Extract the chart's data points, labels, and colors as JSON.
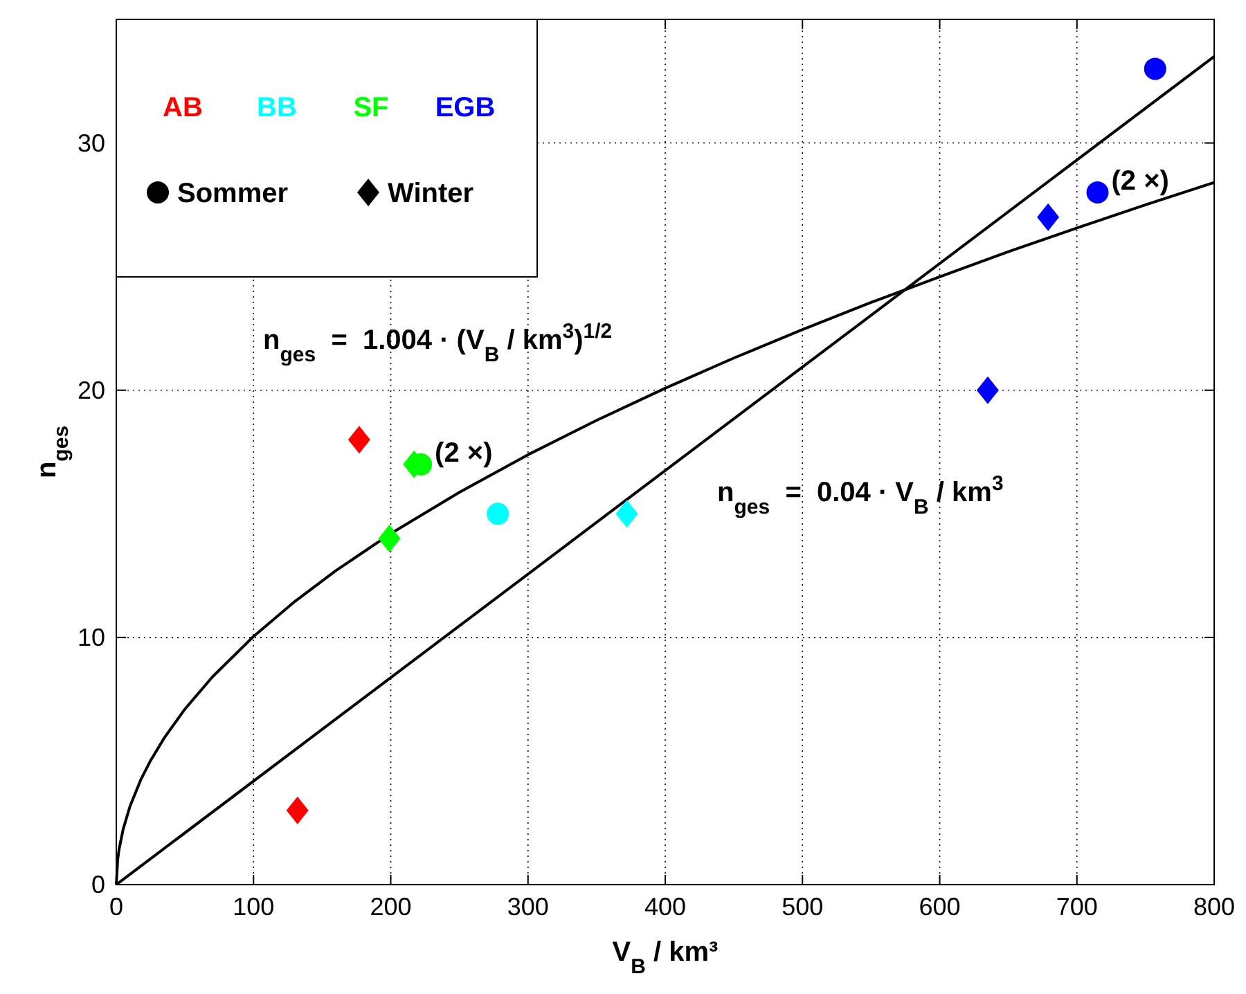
{
  "chart_data": {
    "type": "scatter",
    "xlabel": "V$_{B}$ / km³",
    "ylabel": "n$_{ges}$",
    "xlim": [
      0,
      800
    ],
    "ylim": [
      0,
      35
    ],
    "xticks": [
      0,
      100,
      200,
      300,
      400,
      500,
      600,
      700,
      800
    ],
    "yticks": [
      0,
      10,
      20,
      30
    ],
    "grid": true,
    "series": [
      {
        "type": "line",
        "color": "#000000",
        "marker": "none",
        "x": [
          0,
          1,
          2,
          5,
          10,
          18,
          25,
          35,
          50,
          70,
          100,
          130,
          160,
          200,
          250,
          300,
          350,
          400,
          450,
          500,
          550,
          600,
          650,
          700,
          750,
          800
        ],
        "values": [
          0,
          1,
          1.42,
          2.24,
          3.17,
          4.26,
          5.02,
          5.94,
          7.1,
          8.4,
          10.04,
          11.45,
          12.7,
          14.2,
          15.87,
          17.39,
          18.78,
          20.08,
          21.3,
          22.45,
          23.55,
          24.59,
          25.6,
          26.56,
          27.5,
          28.4
        ]
      },
      {
        "type": "line",
        "color": "#000000",
        "marker": "none",
        "x": [
          0,
          800
        ],
        "values": [
          0,
          33.5
        ]
      },
      {
        "color": "#ff0000",
        "marker": "diamond",
        "x": [
          132,
          177
        ],
        "values": [
          3,
          18
        ]
      },
      {
        "color": "#00ffff",
        "marker": "circle",
        "x": [
          278
        ],
        "values": [
          15
        ]
      },
      {
        "color": "#00ffff",
        "marker": "diamond",
        "x": [
          372
        ],
        "values": [
          15
        ]
      },
      {
        "color": "#00ff00",
        "marker": "diamond",
        "x": [
          199,
          217
        ],
        "values": [
          14,
          17
        ]
      },
      {
        "color": "#00ff00",
        "marker": "circle",
        "x": [
          222
        ],
        "values": [
          17
        ]
      },
      {
        "color": "#0000ff",
        "marker": "diamond",
        "x": [
          635,
          679
        ],
        "values": [
          20,
          27
        ]
      },
      {
        "color": "#0000ff",
        "marker": "circle",
        "x": [
          715,
          757
        ],
        "values": [
          28,
          33
        ]
      }
    ],
    "annotations": [
      "AB",
      "BB",
      "SF",
      "EGB",
      "Sommer",
      "Winter",
      "n$_{ges}$  =  1.004 · (V$_{B}$ / km$^{3}$)$^{1/2}$",
      "n$_{ges}$  =  0.04 · V$_{B}$ / km$^{3}$",
      {
        "text": "(2 ×)",
        "x": 222,
        "y": 17
      },
      {
        "text": "(2 ×)",
        "x": 715,
        "y": 28
      }
    ]
  }
}
